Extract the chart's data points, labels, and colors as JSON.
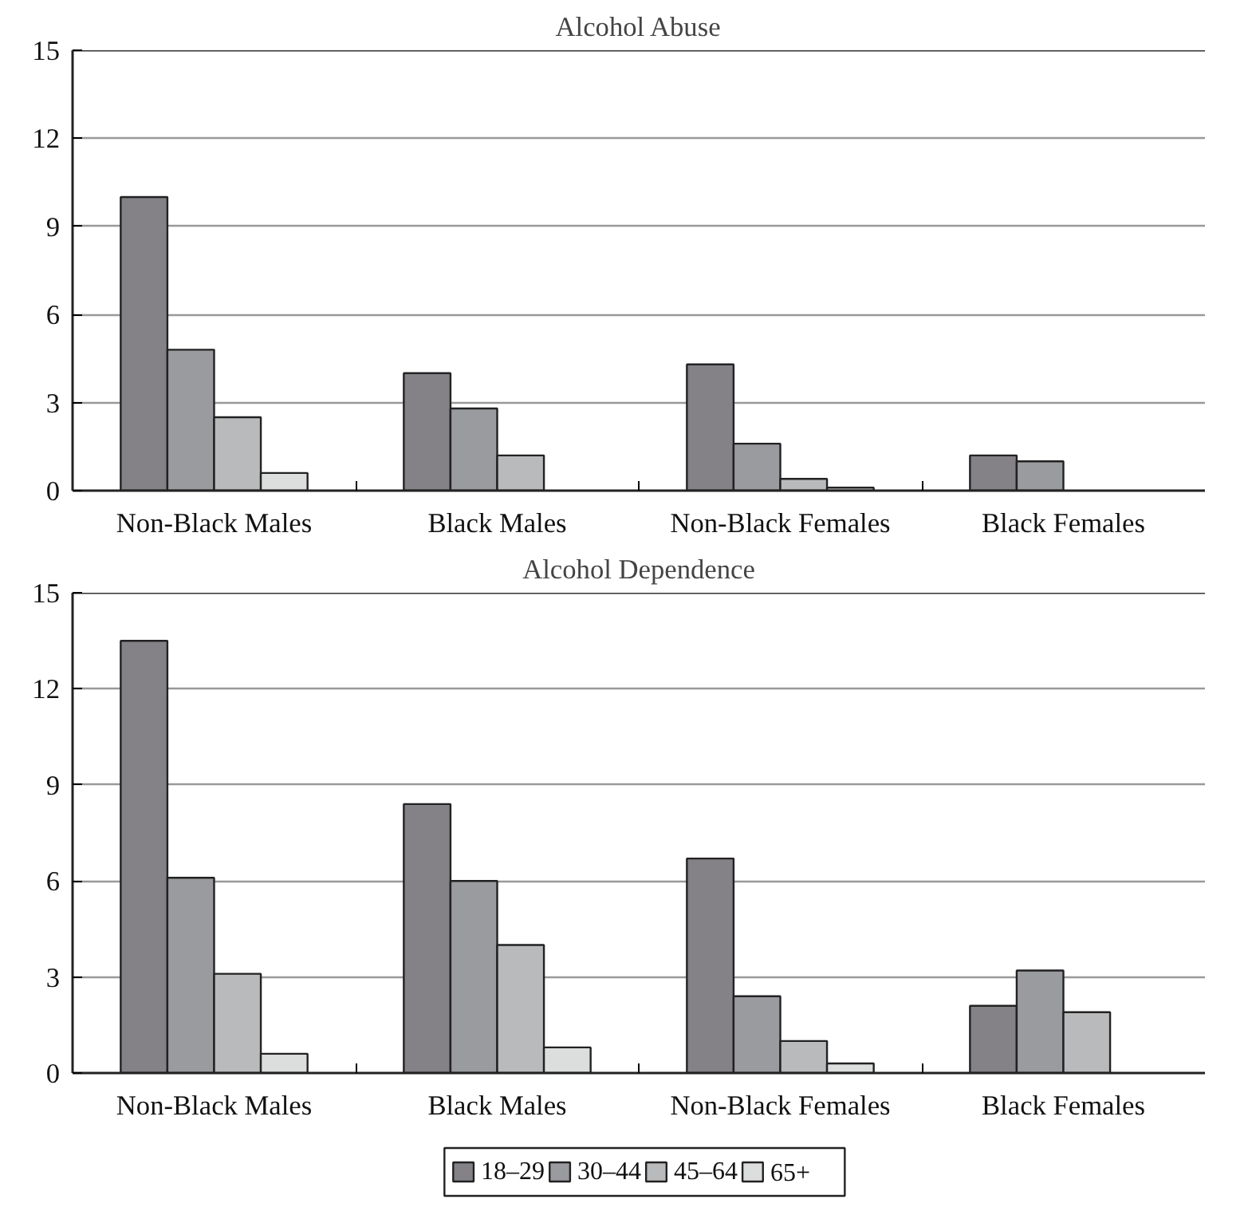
{
  "chart_data": [
    {
      "type": "bar",
      "title": "Alcohol Abuse",
      "categories": [
        "Non-Black Males",
        "Black Males",
        "Non-Black Females",
        "Black Females"
      ],
      "ylim": [
        0,
        15
      ],
      "yticks": [
        0,
        3,
        6,
        9,
        12,
        15
      ],
      "grid": "y",
      "legend": false,
      "series": [
        {
          "color": "#848287",
          "values": [
            10.0,
            4.0,
            4.3,
            1.2
          ]
        },
        {
          "color": "#9a9b9f",
          "values": [
            4.8,
            2.8,
            1.6,
            1.0
          ]
        },
        {
          "color": "#b9babc",
          "values": [
            2.5,
            1.2,
            0.4,
            null
          ]
        },
        {
          "color": "#dcdedd",
          "values": [
            0.6,
            null,
            0.1,
            null
          ]
        }
      ]
    },
    {
      "type": "bar",
      "title": "Alcohol Dependence",
      "categories": [
        "Non-Black Males",
        "Black Males",
        "Non-Black Females",
        "Black Females"
      ],
      "ylim": [
        0,
        15
      ],
      "yticks": [
        0,
        3,
        6,
        9,
        12,
        15
      ],
      "grid": "y",
      "legend": "bottom",
      "series": [
        {
          "name": "18–29",
          "color": "#848287",
          "values": [
            13.5,
            8.4,
            6.7,
            2.1
          ]
        },
        {
          "name": "30–44",
          "color": "#9a9b9f",
          "values": [
            6.1,
            6.0,
            2.4,
            3.2
          ]
        },
        {
          "name": "45–64",
          "color": "#b9babc",
          "values": [
            3.1,
            4.0,
            1.0,
            1.9
          ]
        },
        {
          "name": "65+",
          "color": "#dcdedd",
          "values": [
            0.6,
            0.8,
            0.3,
            null
          ]
        }
      ]
    }
  ]
}
